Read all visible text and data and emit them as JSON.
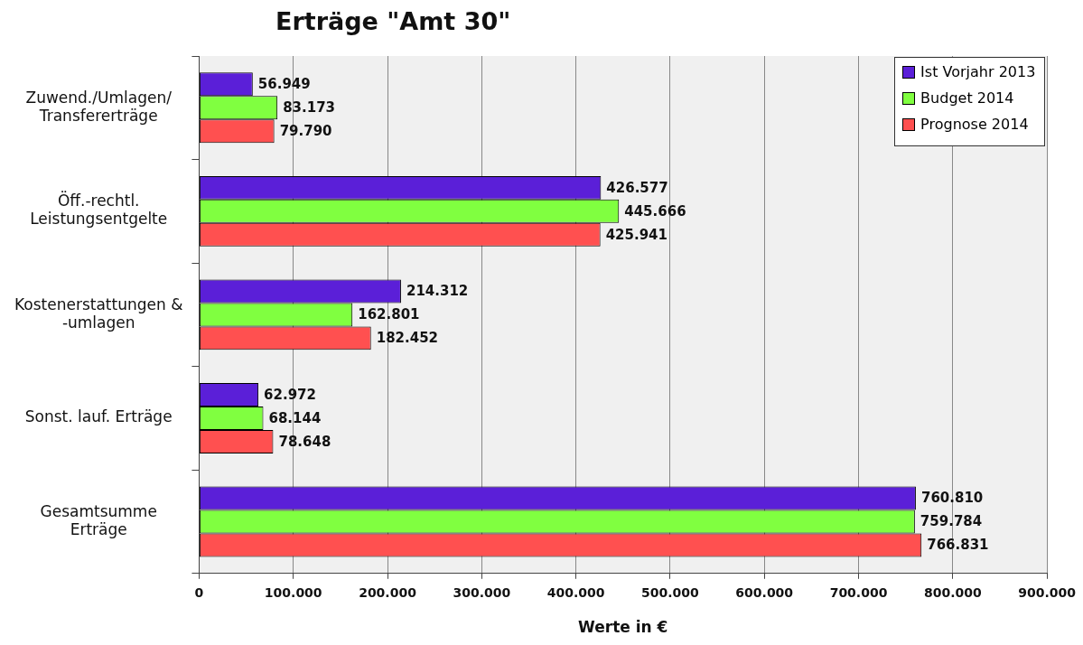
{
  "chart_data": {
    "type": "bar",
    "orientation": "horizontal",
    "title": "Erträge \"Amt 30\"",
    "xlabel": "Werte in €",
    "categories": [
      "Zuwend./Umlagen/\nTransfererträge",
      "Öff.-rechtl.\nLeistungsentgelte",
      "Kostenerstattungen &\n-umlagen",
      "Sonst. lauf. Erträge",
      "Gesamtsumme\nErträge"
    ],
    "series": [
      {
        "name": "Ist Vorjahr 2013",
        "color": "#5b1fd8",
        "values": [
          56949,
          426577,
          214312,
          62972,
          760810
        ],
        "value_labels": [
          "56.949",
          "426.577",
          "214.312",
          "62.972",
          "760.810"
        ]
      },
      {
        "name": "Budget 2014",
        "color": "#80ff40",
        "values": [
          83173,
          445666,
          162801,
          68144,
          759784
        ],
        "value_labels": [
          "83.173",
          "445.666",
          "162.801",
          "68.144",
          "759.784"
        ]
      },
      {
        "name": "Prognose 2014",
        "color": "#ff5050",
        "values": [
          79790,
          425941,
          182452,
          78648,
          766831
        ],
        "value_labels": [
          "79.790",
          "425.941",
          "182.452",
          "78.648",
          "766.831"
        ]
      }
    ],
    "xlim": [
      0,
      900000
    ],
    "xticks": [
      0,
      {
        "value": 100000,
        "label": "100.000"
      },
      {
        "value": 200000,
        "label": "200.000"
      },
      {
        "value": 300000,
        "label": "300.000"
      },
      {
        "value": 400000,
        "label": "400.000"
      },
      {
        "value": 500000,
        "label": "500.000"
      },
      {
        "value": 600000,
        "label": "600.000"
      },
      {
        "value": 700000,
        "label": "700.000"
      },
      {
        "value": 800000,
        "label": "800.000"
      },
      {
        "value": 900000,
        "label": "900.000"
      }
    ],
    "grid": "x",
    "legend": "top right"
  }
}
